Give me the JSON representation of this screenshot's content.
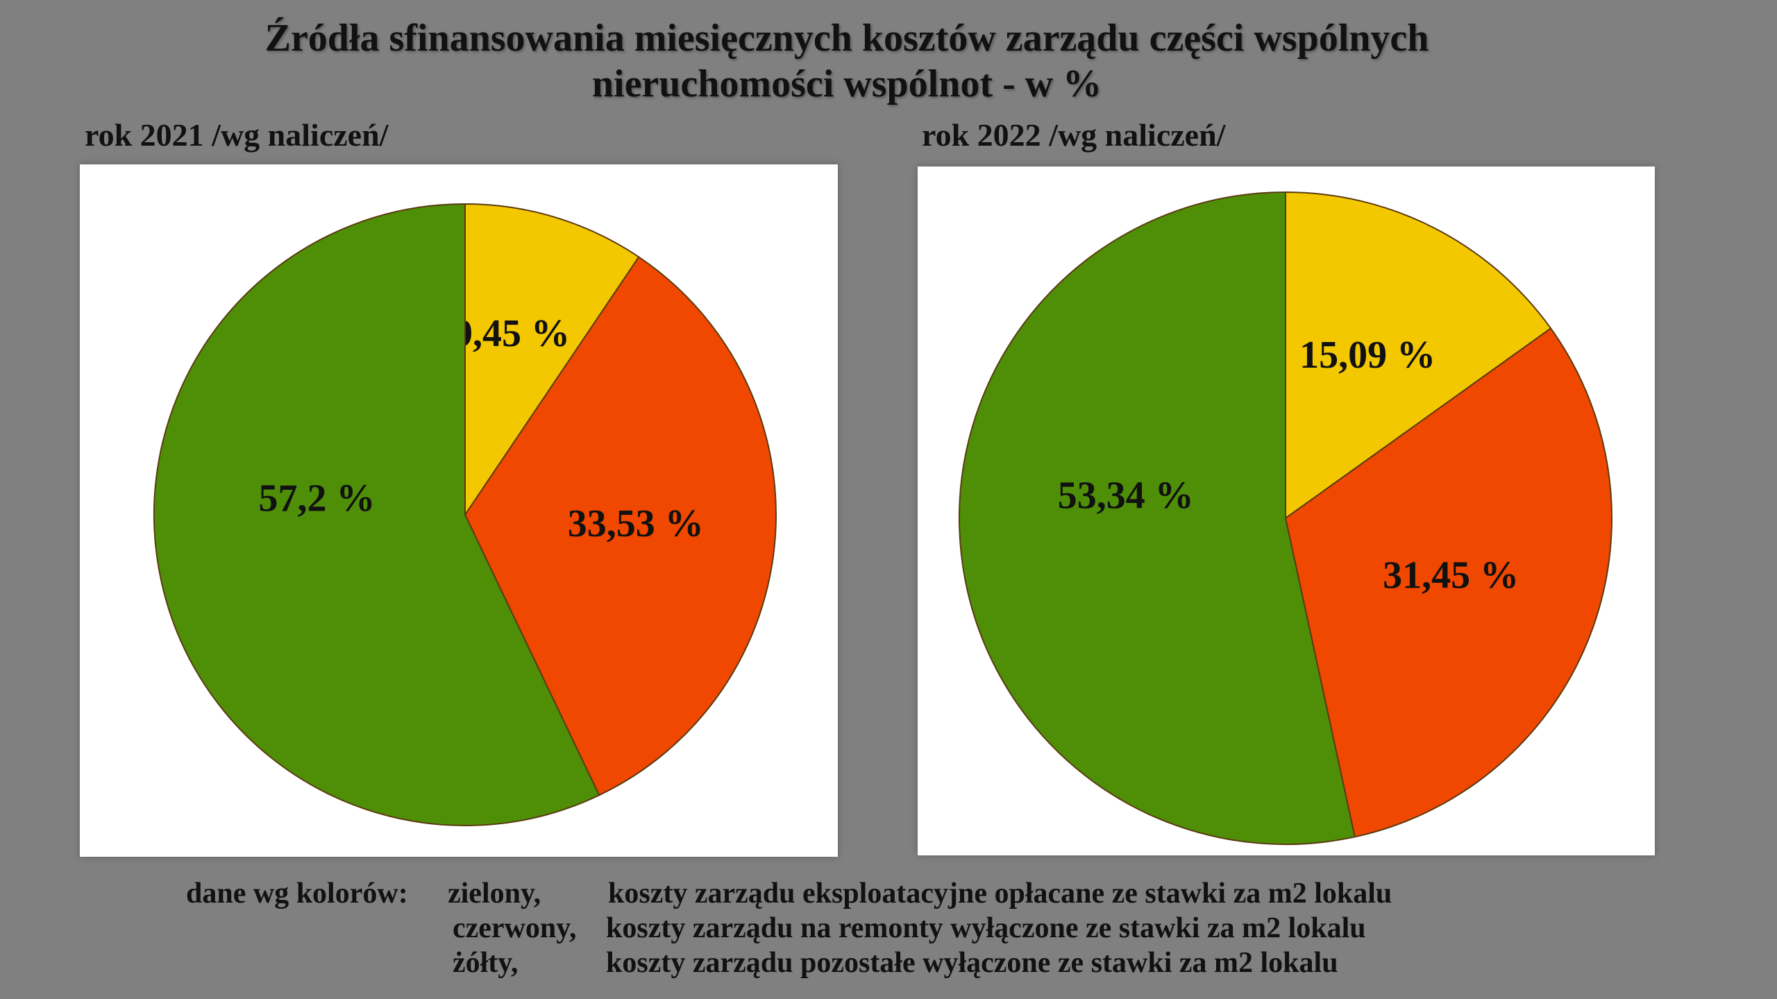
{
  "title_line1": "Źródła sfinansowania miesięcznych kosztów zarządu części wspólnych",
  "title_line2": "nieruchomości wspólnot  -  w %",
  "colors": {
    "green": "#4f8f08",
    "red": "#f04800",
    "yellow": "#f4c800",
    "outline": "#5a3a10",
    "background": "#808080"
  },
  "chart_data": [
    {
      "type": "pie",
      "title": "rok 2021 /wg naliczeń/",
      "slices": [
        {
          "label": "9,45 %",
          "value": 9.45,
          "color": "yellow"
        },
        {
          "label": "33,53 %",
          "value": 33.53,
          "color": "red"
        },
        {
          "label": "57,2 %",
          "value": 57.2,
          "color": "green"
        }
      ]
    },
    {
      "type": "pie",
      "title": "rok 2022 /wg naliczeń/",
      "slices": [
        {
          "label": "15,09 %",
          "value": 15.09,
          "color": "yellow"
        },
        {
          "label": "31,45 %",
          "value": 31.45,
          "color": "red"
        },
        {
          "label": "53,34 %",
          "value": 53.34,
          "color": "green"
        }
      ]
    }
  ],
  "legend": {
    "prefix": "dane wg kolorów:",
    "items": [
      {
        "color_name": "zielony,",
        "description": "koszty zarządu eksploatacyjne opłacane ze stawki za m2 lokalu"
      },
      {
        "color_name": "czerwony,",
        "description": "koszty zarządu na remonty wyłączone ze stawki za m2 lokalu"
      },
      {
        "color_name": "żółty,",
        "description": "koszty zarządu pozostałe wyłączone ze stawki za m2 lokalu"
      }
    ]
  }
}
